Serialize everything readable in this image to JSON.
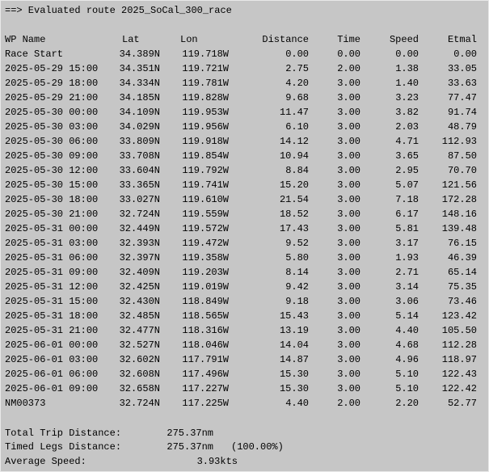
{
  "header": {
    "title": "==> Evaluated route 2025_SoCal_300_race"
  },
  "table": {
    "columns": [
      "WP Name",
      "Lat",
      "Lon",
      "Distance",
      "Time",
      "Speed",
      "Etmal"
    ],
    "rows": [
      [
        "Race Start",
        "34.389N",
        "119.718W",
        "0.00",
        "0.00",
        "0.00",
        "0.00"
      ],
      [
        "2025-05-29 15:00",
        "34.351N",
        "119.721W",
        "2.75",
        "2.00",
        "1.38",
        "33.05"
      ],
      [
        "2025-05-29 18:00",
        "34.334N",
        "119.781W",
        "4.20",
        "3.00",
        "1.40",
        "33.63"
      ],
      [
        "2025-05-29 21:00",
        "34.185N",
        "119.828W",
        "9.68",
        "3.00",
        "3.23",
        "77.47"
      ],
      [
        "2025-05-30 00:00",
        "34.109N",
        "119.953W",
        "11.47",
        "3.00",
        "3.82",
        "91.74"
      ],
      [
        "2025-05-30 03:00",
        "34.029N",
        "119.956W",
        "6.10",
        "3.00",
        "2.03",
        "48.79"
      ],
      [
        "2025-05-30 06:00",
        "33.809N",
        "119.918W",
        "14.12",
        "3.00",
        "4.71",
        "112.93"
      ],
      [
        "2025-05-30 09:00",
        "33.708N",
        "119.854W",
        "10.94",
        "3.00",
        "3.65",
        "87.50"
      ],
      [
        "2025-05-30 12:00",
        "33.604N",
        "119.792W",
        "8.84",
        "3.00",
        "2.95",
        "70.70"
      ],
      [
        "2025-05-30 15:00",
        "33.365N",
        "119.741W",
        "15.20",
        "3.00",
        "5.07",
        "121.56"
      ],
      [
        "2025-05-30 18:00",
        "33.027N",
        "119.610W",
        "21.54",
        "3.00",
        "7.18",
        "172.28"
      ],
      [
        "2025-05-30 21:00",
        "32.724N",
        "119.559W",
        "18.52",
        "3.00",
        "6.17",
        "148.16"
      ],
      [
        "2025-05-31 00:00",
        "32.449N",
        "119.572W",
        "17.43",
        "3.00",
        "5.81",
        "139.48"
      ],
      [
        "2025-05-31 03:00",
        "32.393N",
        "119.472W",
        "9.52",
        "3.00",
        "3.17",
        "76.15"
      ],
      [
        "2025-05-31 06:00",
        "32.397N",
        "119.358W",
        "5.80",
        "3.00",
        "1.93",
        "46.39"
      ],
      [
        "2025-05-31 09:00",
        "32.409N",
        "119.203W",
        "8.14",
        "3.00",
        "2.71",
        "65.14"
      ],
      [
        "2025-05-31 12:00",
        "32.425N",
        "119.019W",
        "9.42",
        "3.00",
        "3.14",
        "75.35"
      ],
      [
        "2025-05-31 15:00",
        "32.430N",
        "118.849W",
        "9.18",
        "3.00",
        "3.06",
        "73.46"
      ],
      [
        "2025-05-31 18:00",
        "32.485N",
        "118.565W",
        "15.43",
        "3.00",
        "5.14",
        "123.42"
      ],
      [
        "2025-05-31 21:00",
        "32.477N",
        "118.316W",
        "13.19",
        "3.00",
        "4.40",
        "105.50"
      ],
      [
        "2025-06-01 00:00",
        "32.527N",
        "118.046W",
        "14.04",
        "3.00",
        "4.68",
        "112.28"
      ],
      [
        "2025-06-01 03:00",
        "32.602N",
        "117.791W",
        "14.87",
        "3.00",
        "4.96",
        "118.97"
      ],
      [
        "2025-06-01 06:00",
        "32.608N",
        "117.496W",
        "15.30",
        "3.00",
        "5.10",
        "122.43"
      ],
      [
        "2025-06-01 09:00",
        "32.658N",
        "117.227W",
        "15.30",
        "3.00",
        "5.10",
        "122.42"
      ],
      [
        "NM00373",
        "32.724N",
        "117.225W",
        "4.40",
        "2.00",
        "2.20",
        "52.77"
      ]
    ]
  },
  "summary": {
    "total_trip": {
      "label": "Total Trip Distance:",
      "value": "275.37nm"
    },
    "timed_legs": {
      "label": "Timed Legs Distance:",
      "value": "275.37nm",
      "percent": "(100.00%)"
    },
    "average_speed": {
      "label": "Average Speed:",
      "value": "3.93kts"
    }
  }
}
